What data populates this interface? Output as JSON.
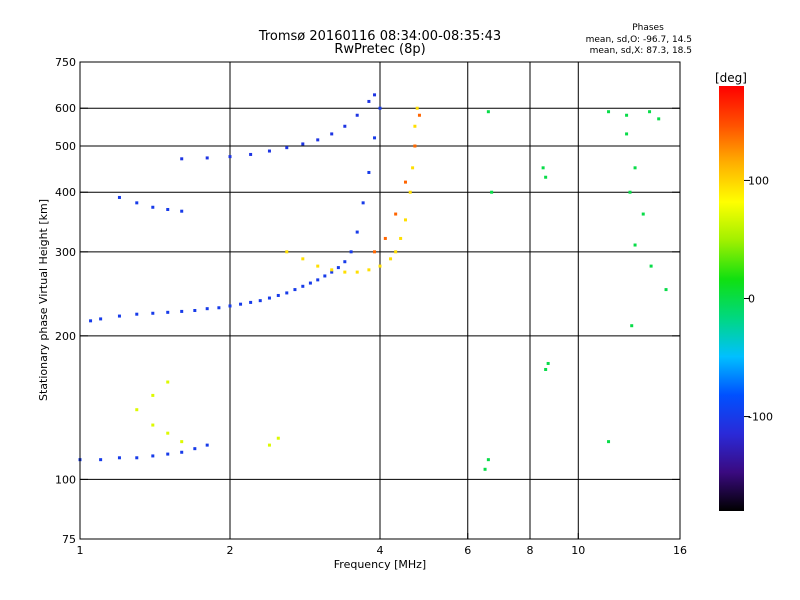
{
  "header": {
    "title_line1": "Tromsø 20160116 08:34:00-08:35:43",
    "title_line2": "RwPretec (8p)",
    "stats_title": "Phases",
    "stats_o": "mean, sd,O: -96.7, 14.5",
    "stats_x": "mean, sd,X:  87.3, 18.5"
  },
  "chart_data": {
    "type": "scatter",
    "xlabel": "Frequency [MHz]",
    "ylabel": "Stationary phase Virtual Height [km]",
    "x_scale": "log",
    "y_scale": "log",
    "xlim": [
      1,
      16
    ],
    "ylim": [
      75,
      750
    ],
    "x_ticks": [
      1,
      2,
      4,
      6,
      8,
      10,
      16
    ],
    "y_ticks": [
      75,
      100,
      200,
      300,
      400,
      500,
      600,
      750
    ],
    "x_grid": [
      2,
      4,
      6,
      8,
      10
    ],
    "y_grid": [
      100,
      200,
      300,
      400,
      500,
      600
    ],
    "grid": true,
    "colorbar": {
      "label": "[deg]",
      "range": [
        -180,
        180
      ],
      "ticks": [
        100,
        0,
        -100
      ],
      "colors": [
        "#000000",
        "#3a0a80",
        "#2a2ad8",
        "#0050ff",
        "#00c0ff",
        "#00d880",
        "#10e010",
        "#a0f000",
        "#ffff00",
        "#ffb000",
        "#ff5000",
        "#ff0000"
      ]
    },
    "series": [
      {
        "trace": "o-mode-F-lower",
        "phase": -100,
        "points": [
          [
            1.05,
            215
          ],
          [
            1.1,
            217
          ],
          [
            1.2,
            220
          ],
          [
            1.3,
            222
          ],
          [
            1.4,
            223
          ],
          [
            1.5,
            224
          ],
          [
            1.6,
            225
          ],
          [
            1.7,
            226
          ],
          [
            1.8,
            228
          ],
          [
            1.9,
            229
          ],
          [
            2.0,
            231
          ],
          [
            2.1,
            233
          ],
          [
            2.2,
            235
          ],
          [
            2.3,
            237
          ],
          [
            2.4,
            240
          ],
          [
            2.5,
            243
          ],
          [
            2.6,
            246
          ],
          [
            2.7,
            250
          ],
          [
            2.8,
            254
          ],
          [
            2.9,
            258
          ],
          [
            3.0,
            262
          ],
          [
            3.1,
            267
          ],
          [
            3.2,
            272
          ],
          [
            3.3,
            278
          ],
          [
            3.4,
            286
          ],
          [
            3.5,
            300
          ],
          [
            3.6,
            330
          ],
          [
            3.7,
            380
          ],
          [
            3.8,
            440
          ],
          [
            3.9,
            520
          ],
          [
            4.0,
            600
          ]
        ]
      },
      {
        "trace": "o-mode-F-upper",
        "phase": -105,
        "points": [
          [
            1.6,
            470
          ],
          [
            1.8,
            472
          ],
          [
            2.0,
            475
          ],
          [
            2.2,
            480
          ],
          [
            2.4,
            488
          ],
          [
            2.6,
            496
          ],
          [
            2.8,
            505
          ],
          [
            3.0,
            515
          ],
          [
            3.2,
            530
          ],
          [
            3.4,
            550
          ],
          [
            3.6,
            580
          ],
          [
            3.8,
            620
          ],
          [
            3.9,
            640
          ]
        ]
      },
      {
        "trace": "o-mode-E",
        "phase": -100,
        "points": [
          [
            1.0,
            110
          ],
          [
            1.1,
            110
          ],
          [
            1.2,
            111
          ],
          [
            1.3,
            111
          ],
          [
            1.4,
            112
          ],
          [
            1.5,
            113
          ],
          [
            1.6,
            114
          ],
          [
            1.7,
            116
          ],
          [
            1.8,
            118
          ]
        ]
      },
      {
        "trace": "o-mode-M",
        "phase": -100,
        "points": [
          [
            1.2,
            390
          ],
          [
            1.3,
            380
          ],
          [
            1.4,
            372
          ],
          [
            1.5,
            368
          ],
          [
            1.6,
            365
          ]
        ]
      },
      {
        "trace": "x-mode-F",
        "phase": 95,
        "points": [
          [
            2.6,
            300
          ],
          [
            2.8,
            290
          ],
          [
            3.0,
            280
          ],
          [
            3.2,
            275
          ],
          [
            3.4,
            272
          ],
          [
            3.6,
            272
          ],
          [
            3.8,
            275
          ],
          [
            4.0,
            280
          ],
          [
            4.2,
            290
          ],
          [
            4.3,
            300
          ],
          [
            4.4,
            320
          ],
          [
            4.5,
            350
          ],
          [
            4.6,
            400
          ],
          [
            4.65,
            450
          ],
          [
            4.7,
            500
          ],
          [
            4.7,
            550
          ],
          [
            4.75,
            600
          ]
        ]
      },
      {
        "trace": "x-mode-F-outer",
        "phase": 140,
        "points": [
          [
            3.9,
            300
          ],
          [
            4.1,
            320
          ],
          [
            4.3,
            360
          ],
          [
            4.5,
            420
          ],
          [
            4.7,
            500
          ],
          [
            4.8,
            580
          ]
        ]
      },
      {
        "trace": "scatter-low",
        "phase": 70,
        "points": [
          [
            1.3,
            140
          ],
          [
            1.4,
            130
          ],
          [
            1.5,
            125
          ],
          [
            1.6,
            120
          ],
          [
            2.4,
            118
          ],
          [
            2.5,
            122
          ],
          [
            1.4,
            150
          ],
          [
            1.5,
            160
          ]
        ]
      },
      {
        "trace": "scatter-isolated",
        "phase": 0,
        "points": [
          [
            6.6,
            590
          ],
          [
            6.7,
            400
          ],
          [
            8.5,
            450
          ],
          [
            8.6,
            430
          ],
          [
            8.6,
            170
          ],
          [
            8.7,
            175
          ],
          [
            12.5,
            580
          ],
          [
            12.7,
            400
          ],
          [
            13.0,
            310
          ],
          [
            13.5,
            360
          ],
          [
            14.0,
            280
          ],
          [
            13.9,
            590
          ],
          [
            15.0,
            250
          ],
          [
            12.8,
            210
          ],
          [
            13.0,
            450
          ],
          [
            12.5,
            530
          ],
          [
            11.5,
            120
          ],
          [
            6.5,
            105
          ],
          [
            6.6,
            110
          ],
          [
            11.5,
            590
          ],
          [
            14.5,
            570
          ]
        ]
      }
    ]
  }
}
